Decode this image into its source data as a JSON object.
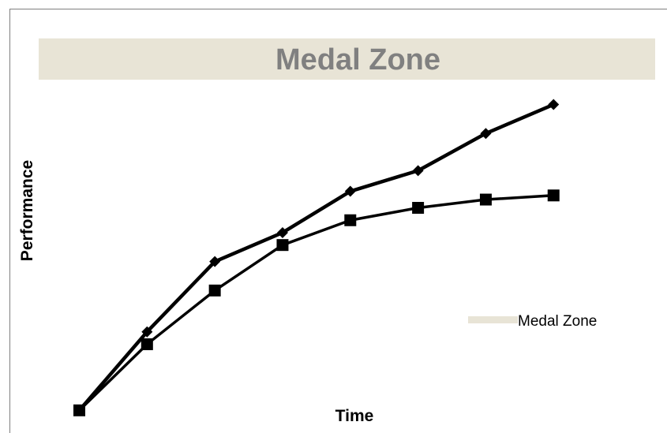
{
  "colors": {
    "zone": "#e8e4d6",
    "zone_text": "#808080",
    "line": "#000000",
    "border": "#7f7f7f"
  },
  "chart_data": {
    "type": "line",
    "title": "",
    "xlabel": "Time",
    "ylabel": "Performance",
    "zone": {
      "label": "Medal Zone",
      "y_range": [
        8.0,
        9.0
      ]
    },
    "legend": {
      "entries": [
        "Medal Zone"
      ],
      "position": "right"
    },
    "x": [
      0,
      1,
      2,
      3,
      4,
      5,
      6,
      7
    ],
    "series": [
      {
        "marker": "diamond",
        "values": [
          0,
          1.9,
          3.6,
          4.3,
          5.3,
          5.8,
          6.7,
          7.4
        ]
      },
      {
        "marker": "square",
        "values": [
          0,
          1.6,
          2.9,
          4.0,
          4.6,
          4.9,
          5.1,
          5.2
        ]
      }
    ],
    "xlim": [
      -0.6,
      8.5
    ],
    "ylim": [
      -0.3,
      9.7
    ],
    "grid": false
  }
}
